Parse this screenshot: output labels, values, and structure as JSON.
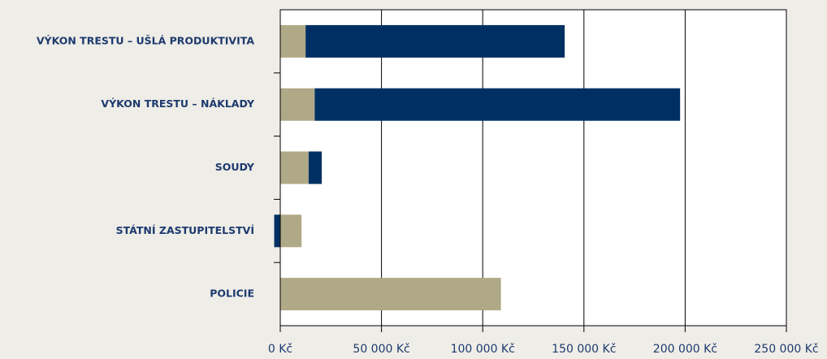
{
  "chart_data": {
    "type": "stacked-barh",
    "categories": [
      "VÝKON TRESTU – UŠLÁ PRODUKTIVITA",
      "VÝKON TRESTU – NÁKLADY",
      "SOUDY",
      "STÁTNÍ ZASTUPITELSTVÍ",
      "POLICIE"
    ],
    "series": [
      {
        "color": "#b0a987",
        "values": [
          12500,
          17000,
          14000,
          10500,
          109000
        ]
      },
      {
        "color": "#003063",
        "values": [
          128000,
          180500,
          6500,
          -3000,
          0
        ]
      }
    ],
    "xlim": [
      0,
      250000
    ],
    "xticks": [
      {
        "value": 0,
        "label": "0 Kč"
      },
      {
        "value": 50000,
        "label": "50 000 Kč"
      },
      {
        "value": 100000,
        "label": "100 000 Kč"
      },
      {
        "value": 150000,
        "label": "150 000 Kč"
      },
      {
        "value": 200000,
        "label": "200 000 Kč"
      },
      {
        "value": 250000,
        "label": "250 000 Kč"
      }
    ],
    "grid": true
  }
}
